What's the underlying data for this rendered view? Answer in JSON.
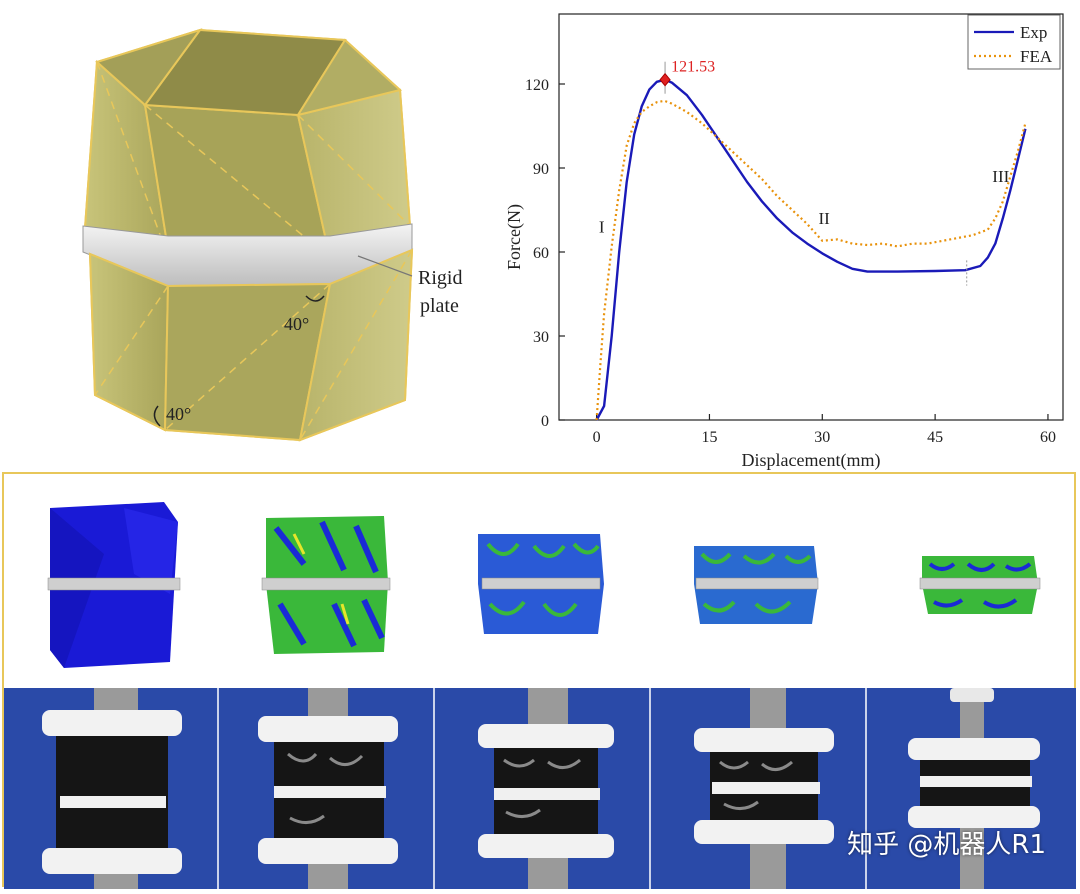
{
  "panel_a": {
    "callout_label_line1": "Rigid",
    "callout_label_line2": "plate",
    "angle_top": "40°",
    "angle_bottom": "40°"
  },
  "chart_data": {
    "type": "line",
    "xlabel": "Displacement(mm)",
    "ylabel": "Force(N)",
    "xlim": [
      -5,
      62
    ],
    "ylim": [
      0,
      145
    ],
    "x_ticks": [
      0,
      15,
      30,
      45,
      60
    ],
    "y_ticks": [
      0,
      30,
      60,
      90,
      120
    ],
    "legend_position": "top-right",
    "peak_label": "121.53",
    "peak_point": [
      9.1,
      121.53
    ],
    "stage_labels": [
      {
        "text": "I",
        "x": 0.3,
        "y": 67
      },
      {
        "text": "II",
        "x": 29.5,
        "y": 70
      },
      {
        "text": "III",
        "x": 52.6,
        "y": 85
      }
    ],
    "series": [
      {
        "name": "Exp",
        "color": "#1a1ab8",
        "style": "solid",
        "points": [
          [
            0,
            0
          ],
          [
            1,
            5
          ],
          [
            2,
            30
          ],
          [
            3,
            60
          ],
          [
            4,
            85
          ],
          [
            5,
            102
          ],
          [
            6,
            112
          ],
          [
            7,
            118
          ],
          [
            8,
            120.8
          ],
          [
            9.1,
            121.53
          ],
          [
            10,
            120.5
          ],
          [
            12,
            116
          ],
          [
            14,
            109
          ],
          [
            16,
            101
          ],
          [
            18,
            93
          ],
          [
            20,
            85
          ],
          [
            22,
            78
          ],
          [
            24,
            72
          ],
          [
            26,
            67
          ],
          [
            28,
            63
          ],
          [
            30,
            59.5
          ],
          [
            32,
            56.5
          ],
          [
            34,
            54
          ],
          [
            36,
            53
          ],
          [
            40,
            53
          ],
          [
            45,
            53.2
          ],
          [
            49,
            53.5
          ],
          [
            51,
            55
          ],
          [
            52,
            58
          ],
          [
            53,
            63
          ],
          [
            54,
            72
          ],
          [
            55,
            82
          ],
          [
            56,
            93
          ],
          [
            57,
            104
          ]
        ]
      },
      {
        "name": "FEA",
        "color": "#e8920c",
        "style": "dotted",
        "points": [
          [
            0,
            0
          ],
          [
            0.5,
            20
          ],
          [
            1,
            38
          ],
          [
            2,
            62
          ],
          [
            3,
            82
          ],
          [
            4,
            98
          ],
          [
            5,
            106
          ],
          [
            6,
            110
          ],
          [
            7,
            112
          ],
          [
            8,
            113.5
          ],
          [
            9,
            114
          ],
          [
            10,
            113
          ],
          [
            12,
            110
          ],
          [
            14,
            106
          ],
          [
            16,
            101
          ],
          [
            18,
            96
          ],
          [
            20,
            91
          ],
          [
            22,
            86
          ],
          [
            24,
            80
          ],
          [
            26,
            75
          ],
          [
            28,
            70
          ],
          [
            30,
            64
          ],
          [
            32,
            64.5
          ],
          [
            34,
            63
          ],
          [
            36,
            62.5
          ],
          [
            38,
            63
          ],
          [
            40,
            62
          ],
          [
            42,
            63
          ],
          [
            44,
            63
          ],
          [
            46,
            64
          ],
          [
            48,
            65
          ],
          [
            50,
            66
          ],
          [
            52,
            68
          ],
          [
            53,
            72
          ],
          [
            54,
            78
          ],
          [
            55,
            87
          ],
          [
            56,
            96
          ],
          [
            57,
            106
          ]
        ]
      }
    ]
  },
  "panel_c": {
    "watermark": "知乎 @机器人R1",
    "colors": {
      "frame": "#e8c75a",
      "photo_background": "#2a4aa8",
      "sim_blue": "#1a1ad6",
      "sim_green": "#3ab83a"
    }
  }
}
